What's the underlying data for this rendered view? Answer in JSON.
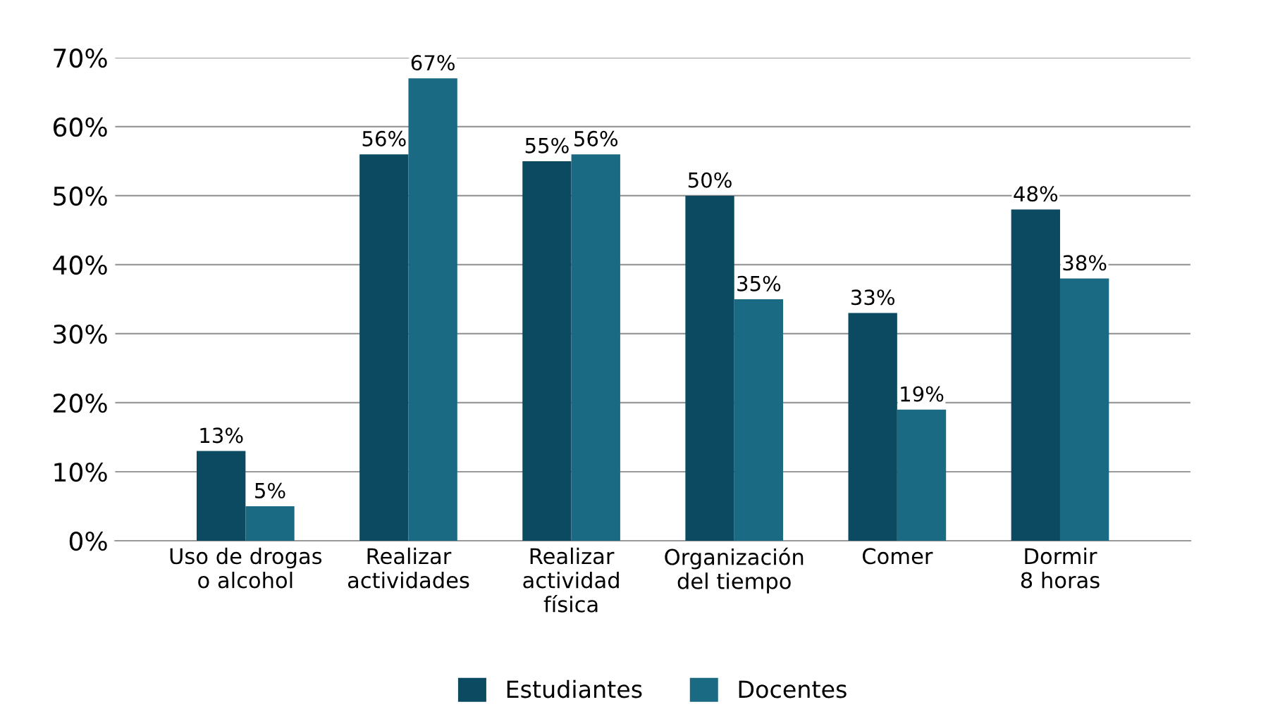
{
  "chart_data": {
    "type": "bar",
    "categories": [
      "Uso de drogas\no alcohol",
      "Realizar\nactividades",
      "Realizar\nactividad\nfísica",
      "Organización\ndel tiempo",
      "Comer",
      "Dormir\n8 horas"
    ],
    "series": [
      {
        "name": "Estudiantes",
        "color": "#0b4a61",
        "values": [
          13,
          56,
          55,
          50,
          33,
          48
        ],
        "value_labels": [
          "13%",
          "56%",
          "55%",
          "50%",
          "33%",
          "48%"
        ]
      },
      {
        "name": "Docentes",
        "color": "#1b6a83",
        "values": [
          5,
          67,
          56,
          35,
          19,
          38
        ],
        "value_labels": [
          "5%",
          "67%",
          "56%",
          "35%",
          "19%",
          "38%"
        ]
      }
    ],
    "ylim": [
      0,
      70
    ],
    "yticks": [
      {
        "value": 0,
        "label": "0%"
      },
      {
        "value": 10,
        "label": "10%"
      },
      {
        "value": 20,
        "label": "20%"
      },
      {
        "value": 30,
        "label": "30%"
      },
      {
        "value": 40,
        "label": "40%"
      },
      {
        "value": 50,
        "label": "50%"
      },
      {
        "value": 60,
        "label": "60%"
      },
      {
        "value": 70,
        "label": "70%"
      }
    ],
    "grid": "y",
    "legend": "bottom"
  }
}
